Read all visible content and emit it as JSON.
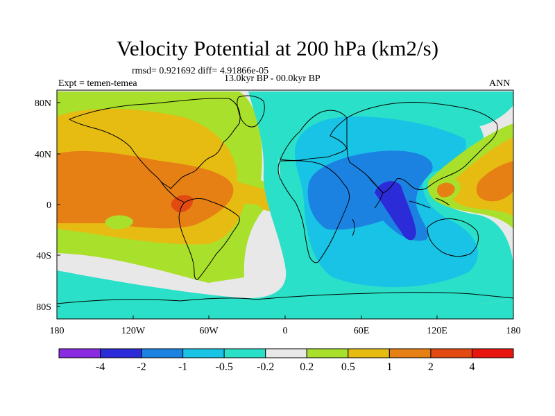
{
  "title": "Velocity Potential at 200 hPa (km2/s)",
  "stats": "rmsd= 0.921692  diff= 4.91866e-05",
  "period": "13.0kyr BP - 00.0kyr BP",
  "experiment": "Expt = temen-temea",
  "season": "ANN",
  "lat_labels": [
    "80N",
    "40N",
    "0",
    "40S",
    "80S"
  ],
  "lon_labels": [
    "180",
    "120W",
    "60W",
    "0",
    "60E",
    "120E",
    "180"
  ],
  "colorbar": {
    "labels": [
      "-4",
      "-2",
      "-1",
      "-0.5",
      "-0.2",
      "0.2",
      "0.5",
      "1",
      "2",
      "4"
    ],
    "colors": [
      "#8a2be2",
      "#2b2bd8",
      "#1b82e2",
      "#18c3e6",
      "#2be0c8",
      "#e8e8e8",
      "#a9e02b",
      "#e6bb12",
      "#e67f14",
      "#e24a12",
      "#e8160d"
    ]
  }
}
